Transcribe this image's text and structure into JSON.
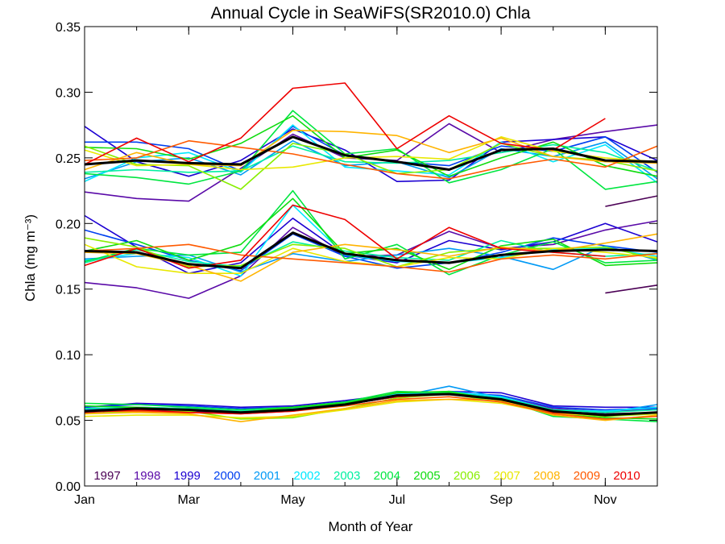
{
  "chart_data": {
    "type": "line",
    "title": "Annual Cycle in SeaWiFS(SR2010.0) Chla",
    "xlabel": "Month of Year",
    "ylabel": "Chla (mg m⁻³)",
    "xlim": [
      1,
      12
    ],
    "ylim": [
      0.0,
      0.35
    ],
    "x": [
      1,
      2,
      3,
      4,
      5,
      6,
      7,
      8,
      9,
      10,
      11,
      12
    ],
    "x_ticks": [
      {
        "value": 1,
        "label": "Jan"
      },
      {
        "value": 3,
        "label": "Mar"
      },
      {
        "value": 5,
        "label": "May"
      },
      {
        "value": 7,
        "label": "Jul"
      },
      {
        "value": 9,
        "label": "Sep"
      },
      {
        "value": 11,
        "label": "Nov"
      }
    ],
    "y_ticks": [
      {
        "value": 0.0,
        "label": "0.00"
      },
      {
        "value": 0.05,
        "label": "0.05"
      },
      {
        "value": 0.1,
        "label": "0.10"
      },
      {
        "value": 0.15,
        "label": "0.15"
      },
      {
        "value": 0.2,
        "label": "0.20"
      },
      {
        "value": 0.25,
        "label": "0.25"
      },
      {
        "value": 0.3,
        "label": "0.30"
      },
      {
        "value": 0.35,
        "label": "0.35"
      }
    ],
    "legend_position": "bottom, inside plot",
    "grid": false,
    "groups": [
      "upper",
      "middle",
      "lower"
    ],
    "series": [
      {
        "name": "1997",
        "color": "#4b0055",
        "upper": [
          null,
          null,
          null,
          null,
          null,
          null,
          null,
          null,
          null,
          null,
          0.213,
          0.221
        ],
        "middle": [
          null,
          null,
          null,
          null,
          null,
          null,
          null,
          null,
          null,
          null,
          0.147,
          0.153
        ],
        "lower": [
          0.057,
          0.058,
          0.057,
          0.056,
          0.058,
          0.062,
          0.068,
          0.07,
          0.066,
          0.057,
          0.055,
          0.056
        ]
      },
      {
        "name": "1998",
        "color": "#5a0aa8",
        "upper": [
          0.224,
          0.219,
          0.217,
          0.242,
          0.268,
          0.25,
          0.248,
          0.276,
          0.254,
          0.264,
          0.27,
          0.275
        ],
        "middle": [
          0.155,
          0.151,
          0.143,
          0.16,
          0.197,
          0.175,
          0.176,
          0.194,
          0.181,
          0.184,
          0.195,
          0.202
        ],
        "lower": [
          0.058,
          0.06,
          0.059,
          0.057,
          0.058,
          0.062,
          0.069,
          0.071,
          0.068,
          0.059,
          0.057,
          0.058
        ]
      },
      {
        "name": "1999",
        "color": "#1c00d2",
        "upper": [
          0.274,
          0.247,
          0.236,
          0.248,
          0.272,
          0.256,
          0.232,
          0.233,
          0.262,
          0.264,
          0.266,
          0.248
        ],
        "middle": [
          0.206,
          0.182,
          0.162,
          0.17,
          0.204,
          0.176,
          0.17,
          0.187,
          0.18,
          0.186,
          0.2,
          0.186
        ],
        "lower": [
          0.06,
          0.063,
          0.062,
          0.06,
          0.061,
          0.065,
          0.07,
          0.072,
          0.071,
          0.061,
          0.06,
          0.06
        ]
      },
      {
        "name": "2000",
        "color": "#0040f0",
        "upper": [
          0.262,
          0.262,
          0.257,
          0.24,
          0.274,
          0.252,
          0.247,
          0.244,
          0.259,
          0.255,
          0.266,
          0.239
        ],
        "middle": [
          0.195,
          0.184,
          0.172,
          0.164,
          0.192,
          0.175,
          0.166,
          0.17,
          0.178,
          0.189,
          0.183,
          0.178
        ],
        "lower": [
          0.06,
          0.062,
          0.061,
          0.059,
          0.06,
          0.064,
          0.069,
          0.071,
          0.069,
          0.06,
          0.058,
          0.059
        ]
      },
      {
        "name": "2001",
        "color": "#0099f5",
        "upper": [
          0.234,
          0.247,
          0.25,
          0.237,
          0.263,
          0.244,
          0.247,
          0.235,
          0.257,
          0.251,
          0.262,
          0.234
        ],
        "middle": [
          0.173,
          0.175,
          0.176,
          0.163,
          0.177,
          0.171,
          0.176,
          0.181,
          0.175,
          0.165,
          0.183,
          0.172
        ],
        "lower": [
          0.058,
          0.059,
          0.058,
          0.056,
          0.058,
          0.062,
          0.068,
          0.076,
          0.067,
          0.058,
          0.056,
          0.062
        ]
      },
      {
        "name": "2002",
        "color": "#00e8ff",
        "upper": [
          0.232,
          0.25,
          0.254,
          0.239,
          0.275,
          0.243,
          0.24,
          0.237,
          0.262,
          0.247,
          0.26,
          0.231
        ],
        "middle": [
          0.172,
          0.177,
          0.174,
          0.16,
          0.214,
          0.176,
          0.171,
          0.17,
          0.174,
          0.18,
          0.181,
          0.175
        ],
        "lower": [
          0.057,
          0.059,
          0.058,
          0.057,
          0.059,
          0.063,
          0.07,
          0.072,
          0.068,
          0.058,
          0.057,
          0.06
        ]
      },
      {
        "name": "2003",
        "color": "#00f0a0",
        "upper": [
          0.239,
          0.241,
          0.239,
          0.24,
          0.259,
          0.247,
          0.246,
          0.248,
          0.254,
          0.26,
          0.254,
          0.24
        ],
        "middle": [
          0.17,
          0.18,
          0.171,
          0.167,
          0.186,
          0.179,
          0.174,
          0.172,
          0.187,
          0.178,
          0.175,
          0.177
        ],
        "lower": [
          0.059,
          0.06,
          0.059,
          0.057,
          0.059,
          0.063,
          0.069,
          0.071,
          0.067,
          0.058,
          0.056,
          0.058
        ]
      },
      {
        "name": "2004",
        "color": "#00e640",
        "upper": [
          0.238,
          0.235,
          0.23,
          0.24,
          0.286,
          0.253,
          0.257,
          0.231,
          0.241,
          0.257,
          0.226,
          0.232
        ],
        "middle": [
          0.171,
          0.181,
          0.176,
          0.178,
          0.225,
          0.173,
          0.184,
          0.161,
          0.176,
          0.186,
          0.17,
          0.172
        ],
        "lower": [
          0.063,
          0.062,
          0.06,
          0.058,
          0.06,
          0.064,
          0.072,
          0.071,
          0.066,
          0.053,
          0.051,
          0.049
        ]
      },
      {
        "name": "2005",
        "color": "#10dc10",
        "upper": [
          0.258,
          0.257,
          0.249,
          0.261,
          0.282,
          0.25,
          0.256,
          0.236,
          0.25,
          0.262,
          0.244,
          0.236
        ],
        "middle": [
          0.179,
          0.187,
          0.172,
          0.184,
          0.219,
          0.177,
          0.181,
          0.165,
          0.183,
          0.188,
          0.168,
          0.17
        ],
        "lower": [
          0.061,
          0.06,
          0.058,
          0.056,
          0.06,
          0.063,
          0.071,
          0.072,
          0.065,
          0.055,
          0.052,
          0.051
        ]
      },
      {
        "name": "2006",
        "color": "#88ee00",
        "upper": [
          0.259,
          0.245,
          0.244,
          0.226,
          0.261,
          0.253,
          0.238,
          0.241,
          0.261,
          0.251,
          0.248,
          0.24
        ],
        "middle": [
          0.189,
          0.182,
          0.167,
          0.168,
          0.184,
          0.181,
          0.167,
          0.178,
          0.181,
          0.181,
          0.182,
          0.173
        ],
        "lower": [
          0.055,
          0.057,
          0.057,
          0.051,
          0.052,
          0.059,
          0.067,
          0.07,
          0.064,
          0.056,
          0.053,
          0.055
        ]
      },
      {
        "name": "2007",
        "color": "#e8e800",
        "upper": [
          0.256,
          0.244,
          0.245,
          0.241,
          0.243,
          0.25,
          0.251,
          0.249,
          0.266,
          0.255,
          0.25,
          0.247
        ],
        "middle": [
          0.184,
          0.167,
          0.162,
          0.162,
          0.181,
          0.171,
          0.167,
          0.174,
          0.173,
          0.181,
          0.178,
          0.174
        ],
        "lower": [
          0.053,
          0.054,
          0.054,
          0.052,
          0.053,
          0.058,
          0.064,
          0.066,
          0.063,
          0.055,
          0.054,
          0.055
        ]
      },
      {
        "name": "2008",
        "color": "#ffb400",
        "upper": [
          0.241,
          0.254,
          0.245,
          0.244,
          0.271,
          0.27,
          0.267,
          0.254,
          0.265,
          0.251,
          0.247,
          0.246
        ],
        "middle": [
          0.178,
          0.177,
          0.168,
          0.156,
          0.178,
          0.184,
          0.18,
          0.175,
          0.182,
          0.179,
          0.185,
          0.192
        ],
        "lower": [
          0.055,
          0.056,
          0.055,
          0.049,
          0.054,
          0.059,
          0.065,
          0.066,
          0.065,
          0.054,
          0.05,
          0.054
        ]
      },
      {
        "name": "2009",
        "color": "#ff5a00",
        "upper": [
          0.248,
          0.25,
          0.263,
          0.258,
          0.253,
          0.245,
          0.238,
          0.234,
          0.243,
          0.249,
          0.243,
          0.259
        ],
        "middle": [
          0.179,
          0.181,
          0.184,
          0.176,
          0.173,
          0.17,
          0.167,
          0.163,
          0.173,
          0.176,
          0.173,
          0.177
        ],
        "lower": [
          0.057,
          0.057,
          0.056,
          0.055,
          0.057,
          0.061,
          0.066,
          0.068,
          0.064,
          0.055,
          0.051,
          0.053
        ]
      },
      {
        "name": "2010",
        "color": "#ee0000",
        "upper": [
          0.245,
          0.265,
          0.247,
          0.265,
          0.303,
          0.307,
          0.257,
          0.282,
          0.261,
          0.256,
          0.28,
          null
        ],
        "middle": [
          0.168,
          0.181,
          0.166,
          0.172,
          0.214,
          0.203,
          0.173,
          0.197,
          0.181,
          0.178,
          0.175,
          null
        ],
        "lower": [
          0.056,
          0.058,
          0.056,
          0.055,
          0.057,
          0.062,
          0.068,
          0.07,
          0.066,
          0.056,
          0.054,
          null
        ]
      }
    ],
    "mean": {
      "color": "#000000",
      "upper": [
        0.245,
        0.248,
        0.246,
        0.245,
        0.266,
        0.252,
        0.247,
        0.241,
        0.256,
        0.257,
        0.248,
        0.247
      ],
      "middle": [
        0.179,
        0.178,
        0.169,
        0.166,
        0.193,
        0.177,
        0.172,
        0.17,
        0.176,
        0.179,
        0.18,
        0.179
      ],
      "lower": [
        0.057,
        0.059,
        0.058,
        0.056,
        0.058,
        0.062,
        0.069,
        0.07,
        0.066,
        0.057,
        0.054,
        0.056
      ]
    }
  }
}
